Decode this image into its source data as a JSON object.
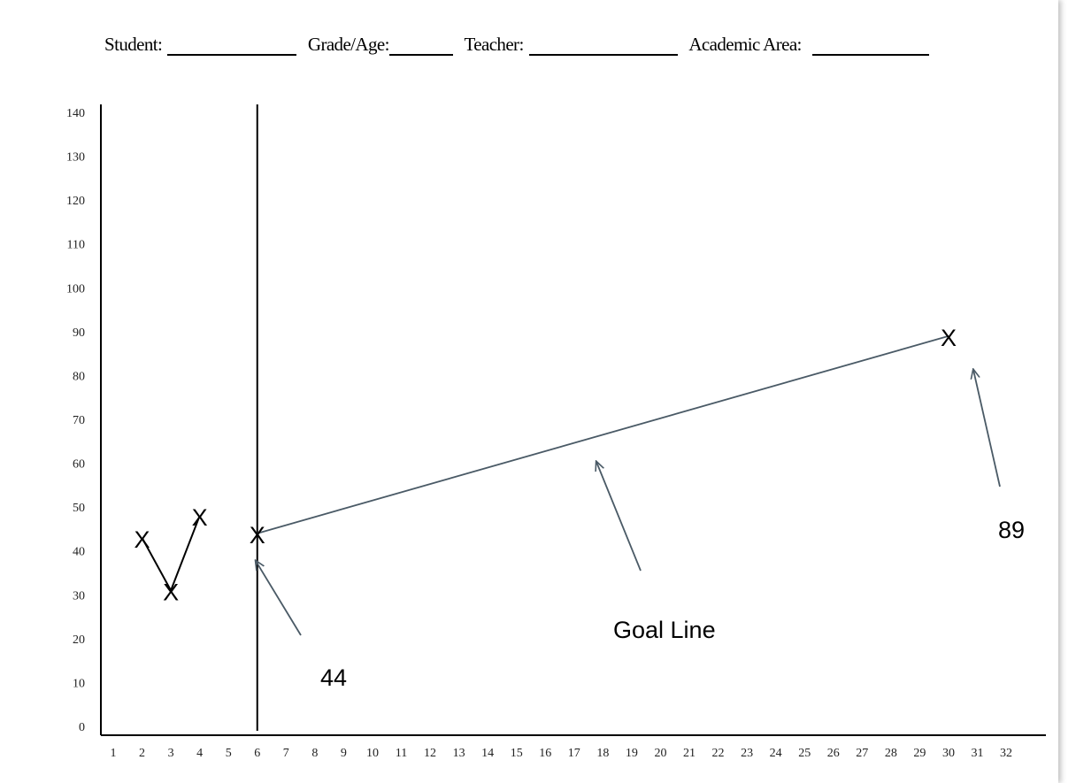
{
  "header": {
    "student_label": "Student:",
    "grade_label": "Grade/Age:",
    "teacher_label": "Teacher:",
    "area_label": "Academic Area:"
  },
  "chart_data": {
    "type": "line",
    "title": "",
    "xlabel": "",
    "ylabel": "",
    "xlim": [
      1,
      32
    ],
    "ylim": [
      0,
      140
    ],
    "x_ticks": [
      1,
      2,
      3,
      4,
      5,
      6,
      7,
      8,
      9,
      10,
      11,
      12,
      13,
      14,
      15,
      16,
      17,
      18,
      19,
      20,
      21,
      22,
      23,
      24,
      25,
      26,
      27,
      28,
      29,
      30,
      31,
      32
    ],
    "y_ticks": [
      0,
      10,
      20,
      30,
      40,
      50,
      60,
      70,
      80,
      90,
      100,
      110,
      120,
      130,
      140
    ],
    "grid": false,
    "marker": "X",
    "series": [
      {
        "values": [
          {
            "x": 2,
            "y": 43
          },
          {
            "x": 3,
            "y": 31
          },
          {
            "x": 4,
            "y": 48
          }
        ],
        "color": "#000000"
      },
      {
        "values": [
          {
            "x": 6,
            "y": 44
          },
          {
            "x": 30,
            "y": 89
          }
        ],
        "color": "#4a5a66"
      }
    ],
    "phase_line_x": 6,
    "annotations": [
      {
        "text": "44",
        "target": {
          "x": 6,
          "y": 44
        }
      },
      {
        "text": "Goal Line",
        "target": {
          "x": 18.5,
          "y": 66
        }
      },
      {
        "text": "89",
        "target": {
          "x": 30,
          "y": 89
        }
      }
    ],
    "arrow_color": "#4a5a66"
  }
}
